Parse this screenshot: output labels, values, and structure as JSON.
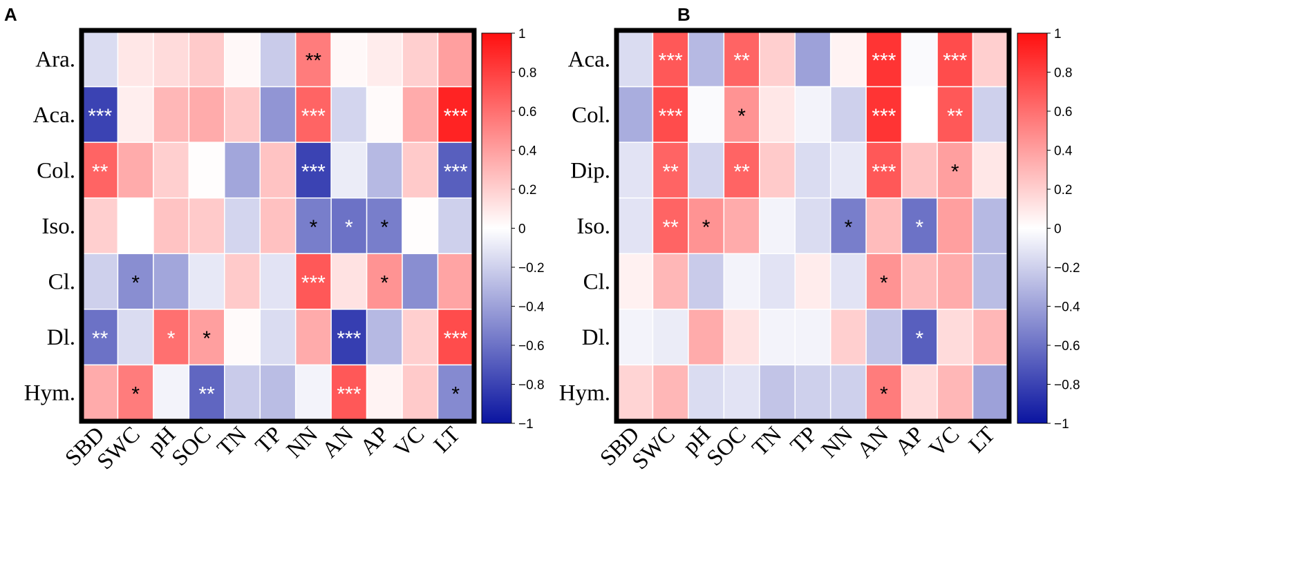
{
  "chart_data": [
    {
      "type": "heatmap",
      "panel": "A",
      "rows": [
        "Ara.",
        "Aca.",
        "Col.",
        "Iso.",
        "Cl.",
        "Dl.",
        "Hym."
      ],
      "columns": [
        "SBD",
        "SWC",
        "pH",
        "SOC",
        "TN",
        "TP",
        "NN",
        "AN",
        "AP",
        "VC",
        "LT"
      ],
      "values": [
        [
          -0.15,
          0.1,
          0.15,
          0.22,
          0.03,
          -0.22,
          0.55,
          0.03,
          0.08,
          0.2,
          0.4
        ],
        [
          -0.8,
          0.07,
          0.3,
          0.35,
          0.23,
          -0.45,
          0.65,
          -0.18,
          0.02,
          0.35,
          0.92
        ],
        [
          0.65,
          0.35,
          0.2,
          0.01,
          -0.38,
          0.25,
          -0.8,
          -0.08,
          -0.3,
          0.22,
          -0.68
        ],
        [
          0.2,
          0.0,
          0.25,
          0.22,
          -0.18,
          0.26,
          -0.55,
          -0.6,
          -0.55,
          0.01,
          -0.2
        ],
        [
          -0.2,
          -0.48,
          -0.38,
          -0.1,
          0.22,
          -0.12,
          0.7,
          0.12,
          0.45,
          -0.48,
          0.38
        ],
        [
          -0.6,
          -0.15,
          0.6,
          0.4,
          0.02,
          -0.15,
          0.35,
          -0.82,
          -0.3,
          0.2,
          0.75
        ],
        [
          0.35,
          0.55,
          -0.05,
          -0.65,
          -0.22,
          -0.28,
          -0.05,
          0.7,
          0.05,
          0.22,
          -0.5
        ]
      ],
      "significance": [
        [
          "",
          "",
          "",
          "",
          "",
          "",
          "**",
          "",
          "",
          "",
          ""
        ],
        [
          "***",
          "",
          "",
          "",
          "",
          "",
          "***",
          "",
          "",
          "",
          "***"
        ],
        [
          "**",
          "",
          "",
          "",
          "",
          "",
          "***",
          "",
          "",
          "",
          "***"
        ],
        [
          "",
          "",
          "",
          "",
          "",
          "",
          "*",
          "*",
          "*",
          "",
          ""
        ],
        [
          "",
          "*",
          "",
          "",
          "",
          "",
          "***",
          "",
          "*",
          "",
          ""
        ],
        [
          "**",
          "",
          "*",
          "*",
          "",
          "",
          "",
          "***",
          "",
          "",
          "***"
        ],
        [
          "",
          "*",
          "",
          "**",
          "",
          "",
          "",
          "***",
          "",
          "",
          "*"
        ]
      ],
      "colorbar": {
        "min": -1,
        "max": 1,
        "ticks": [
          "1",
          "0.8",
          "0.6",
          "0.4",
          "0.2",
          "0",
          "−0.2",
          "−0.4",
          "−0.6",
          "−0.8",
          "−1"
        ]
      },
      "colors": {
        "negative": "#0a14a0",
        "neutral": "#ffffff",
        "positive": "#ff1010"
      }
    },
    {
      "type": "heatmap",
      "panel": "B",
      "rows": [
        "Aca.",
        "Col.",
        "Dip.",
        "Iso.",
        "Cl.",
        "Dl.",
        "Hym."
      ],
      "columns": [
        "SBD",
        "SWC",
        "pH",
        "SOC",
        "TN",
        "TP",
        "NN",
        "AN",
        "AP",
        "VC",
        "LT"
      ],
      "values": [
        [
          -0.15,
          0.7,
          -0.3,
          0.65,
          0.2,
          -0.4,
          0.05,
          0.85,
          -0.02,
          0.75,
          0.2
        ],
        [
          -0.35,
          0.75,
          -0.02,
          0.45,
          0.1,
          -0.05,
          -0.2,
          0.85,
          0.0,
          0.7,
          -0.2
        ],
        [
          -0.12,
          0.65,
          -0.18,
          0.65,
          0.22,
          -0.15,
          -0.1,
          0.7,
          0.25,
          0.4,
          0.1
        ],
        [
          -0.12,
          0.65,
          0.45,
          0.35,
          -0.05,
          -0.15,
          -0.55,
          0.28,
          -0.6,
          0.4,
          -0.3
        ],
        [
          0.06,
          0.3,
          -0.22,
          -0.05,
          -0.12,
          0.08,
          -0.12,
          0.45,
          0.28,
          0.35,
          -0.28
        ],
        [
          -0.05,
          -0.08,
          0.35,
          0.12,
          -0.05,
          -0.05,
          0.2,
          -0.25,
          -0.68,
          0.15,
          0.3
        ],
        [
          0.18,
          0.3,
          -0.15,
          -0.12,
          -0.25,
          -0.2,
          -0.2,
          0.55,
          0.15,
          0.3,
          -0.4
        ]
      ],
      "significance": [
        [
          "",
          "***",
          "",
          "**",
          "",
          "",
          "",
          "***",
          "",
          "***",
          ""
        ],
        [
          "",
          "***",
          "",
          "*",
          "",
          "",
          "",
          "***",
          "",
          "**",
          ""
        ],
        [
          "",
          "**",
          "",
          "**",
          "",
          "",
          "",
          "***",
          "",
          "*",
          ""
        ],
        [
          "",
          "**",
          "*",
          "",
          "",
          "",
          "*",
          "",
          "*",
          "",
          ""
        ],
        [
          "",
          "",
          "",
          "",
          "",
          "",
          "",
          "*",
          "",
          "",
          ""
        ],
        [
          "",
          "",
          "",
          "",
          "",
          "",
          "",
          "",
          "*",
          "",
          ""
        ],
        [
          "",
          "",
          "",
          "",
          "",
          "",
          "",
          "*",
          "",
          "",
          ""
        ]
      ],
      "colorbar": {
        "min": -1,
        "max": 1,
        "ticks": [
          "1",
          "0.8",
          "0.6",
          "0.4",
          "0.2",
          "0",
          "−0.2",
          "−0.4",
          "−0.6",
          "−0.8",
          "−1"
        ]
      },
      "colors": {
        "negative": "#0a14a0",
        "neutral": "#ffffff",
        "positive": "#ff1010"
      }
    }
  ]
}
